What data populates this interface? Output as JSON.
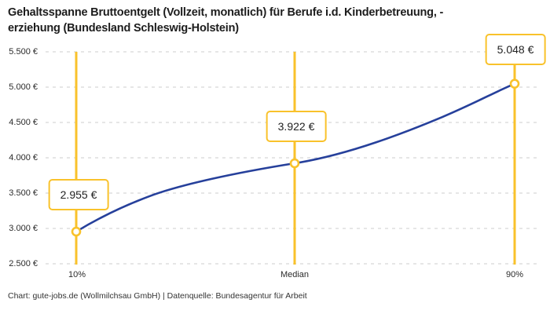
{
  "title": "Gehaltsspanne Bruttoentgelt (Vollzeit, monatlich) für Berufe i.d. Kinderbetreuung, -erziehung (Bundesland Schleswig-Holstein)",
  "title_lines": [
    "Gehaltsspanne Bruttoentgelt (Vollzeit, monatlich) für Berufe i.d. Kinderbetreuung, -",
    "erziehung (Bundesland Schleswig-Holstein)"
  ],
  "footer": "Chart: gute-jobs.de (Wollmilchsau GmbH) | Datenquelle: Bundesagentur für Arbeit",
  "chart_data": {
    "type": "line",
    "categories": [
      "10%",
      "Median",
      "90%"
    ],
    "values": [
      2955,
      3922,
      5048
    ],
    "value_labels": [
      "2.955 €",
      "3.922 €",
      "5.048 €"
    ],
    "ylim": [
      2500,
      5500
    ],
    "ystep": 500,
    "yticks": [
      5500,
      5000,
      4500,
      4000,
      3500,
      3000,
      2500
    ],
    "ytick_labels": [
      "5.500 €",
      "5.000 €",
      "4.500 €",
      "4.000 €",
      "3.500 €",
      "3.000 €",
      "2.500 €"
    ],
    "xlabel": "",
    "ylabel": "",
    "grid": "horizontal-dashed",
    "legend": "none",
    "marker": "open-circle",
    "colors": {
      "accent_yellow": "#f9c22b",
      "line_blue": "#26409b",
      "grid_gray": "#cccccc",
      "text_dark": "#1d1d1d"
    }
  }
}
